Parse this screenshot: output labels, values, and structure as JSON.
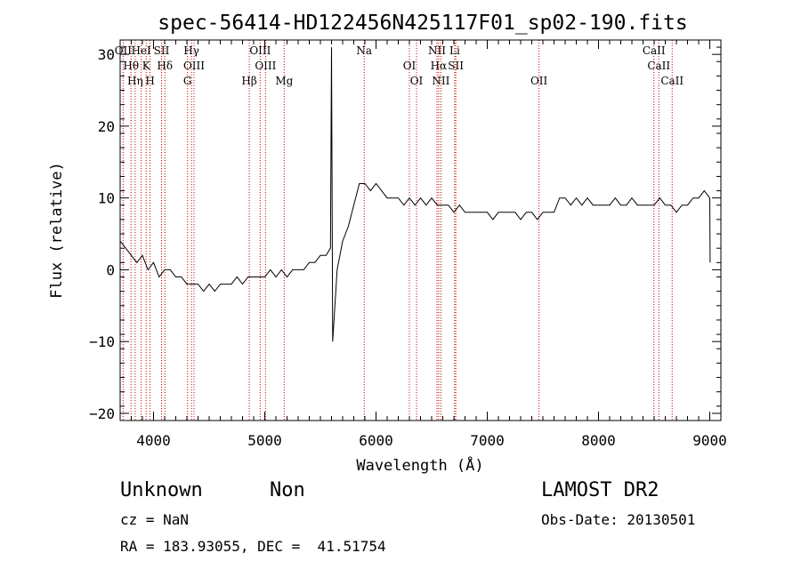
{
  "chart_data": {
    "type": "line",
    "title": "spec-56414-HD122456N425117F01_sp02-190.fits",
    "xlabel": "Wavelength (Å)",
    "ylabel": "Flux (relative)",
    "xlim": [
      3700,
      9100
    ],
    "ylim": [
      -21,
      32
    ],
    "xticks": [
      4000,
      5000,
      6000,
      7000,
      8000,
      9000
    ],
    "yticks": [
      -20,
      -10,
      0,
      10,
      20,
      30
    ],
    "grid": false,
    "legend": "none",
    "line_color": "#000000",
    "marker_color": "#cc0000",
    "series": [
      {
        "x": [
          3700,
          3750,
          3800,
          3850,
          3900,
          3950,
          4000,
          4050,
          4100,
          4150,
          4200,
          4250,
          4300,
          4350,
          4400,
          4450,
          4500,
          4550,
          4600,
          4650,
          4700,
          4750,
          4800,
          4850,
          4900,
          4950,
          5000,
          5050,
          5100,
          5150,
          5200,
          5250,
          5300,
          5350,
          5400,
          5450,
          5500,
          5550,
          5590,
          5600,
          5610,
          5650,
          5700,
          5750,
          5800,
          5850,
          5900,
          5950,
          6000,
          6050,
          6100,
          6150,
          6200,
          6250,
          6300,
          6350,
          6400,
          6450,
          6500,
          6550,
          6600,
          6650,
          6700,
          6750,
          6800,
          6850,
          6900,
          6950,
          7000,
          7050,
          7100,
          7150,
          7200,
          7250,
          7300,
          7350,
          7400,
          7450,
          7500,
          7550,
          7600,
          7650,
          7700,
          7750,
          7800,
          7850,
          7900,
          7950,
          8000,
          8050,
          8100,
          8150,
          8200,
          8250,
          8300,
          8350,
          8400,
          8450,
          8500,
          8550,
          8600,
          8650,
          8700,
          8750,
          8800,
          8850,
          8900,
          8950,
          9000,
          9003
        ],
        "y": [
          4,
          3,
          2,
          1,
          2,
          0,
          1,
          -1,
          0,
          0,
          -1,
          -1,
          -2,
          -2,
          -2,
          -3,
          -2,
          -3,
          -2,
          -2,
          -2,
          -1,
          -2,
          -1,
          -1,
          -1,
          -1,
          0,
          -1,
          0,
          -1,
          0,
          0,
          0,
          1,
          1,
          2,
          2,
          3,
          31,
          -10,
          0,
          4,
          6,
          9,
          12,
          12,
          11,
          12,
          11,
          10,
          10,
          10,
          9,
          10,
          9,
          10,
          9,
          10,
          9,
          9,
          9,
          8,
          9,
          8,
          8,
          8,
          8,
          8,
          7,
          8,
          8,
          8,
          8,
          7,
          8,
          8,
          7,
          8,
          8,
          8,
          10,
          10,
          9,
          10,
          9,
          10,
          9,
          9,
          9,
          9,
          10,
          9,
          9,
          10,
          9,
          9,
          9,
          9,
          10,
          9,
          9,
          8,
          9,
          9,
          10,
          10,
          11,
          10,
          1
        ]
      }
    ],
    "lines": [
      {
        "x": 3727,
        "labels": [
          "OII"
        ]
      },
      {
        "x": 3798,
        "labels": [
          "Hθ"
        ]
      },
      {
        "x": 3835,
        "labels": [
          "Hη"
        ]
      },
      {
        "x": 3889,
        "labels": [
          "HeI"
        ]
      },
      {
        "x": 3934,
        "labels": [
          "K"
        ]
      },
      {
        "x": 3969,
        "labels": [
          "H"
        ]
      },
      {
        "x": 4072,
        "labels": [
          "SII"
        ]
      },
      {
        "x": 4102,
        "labels": [
          "Hδ"
        ]
      },
      {
        "x": 4305,
        "labels": [
          "G"
        ]
      },
      {
        "x": 4341,
        "labels": [
          "Hγ"
        ]
      },
      {
        "x": 4364,
        "labels": [
          "OIII"
        ]
      },
      {
        "x": 4861,
        "labels": [
          "Hβ"
        ]
      },
      {
        "x": 4959,
        "labels": [
          "OIII"
        ]
      },
      {
        "x": 5007,
        "labels": [
          "OIII"
        ]
      },
      {
        "x": 5175,
        "labels": [
          "Mg"
        ]
      },
      {
        "x": 5894,
        "labels": [
          "Na"
        ]
      },
      {
        "x": 6300,
        "labels": [
          "OI"
        ]
      },
      {
        "x": 6364,
        "labels": [
          "OI"
        ]
      },
      {
        "x": 6548,
        "labels": [
          "NII"
        ]
      },
      {
        "x": 6563,
        "labels": [
          "Hα"
        ]
      },
      {
        "x": 6583,
        "labels": [
          "NII"
        ]
      },
      {
        "x": 6707,
        "labels": [
          "Li"
        ]
      },
      {
        "x": 6717,
        "labels": [
          "SII"
        ]
      },
      {
        "x": 7465,
        "labels": [
          "OII"
        ]
      },
      {
        "x": 8498,
        "labels": [
          "CaII"
        ]
      },
      {
        "x": 8542,
        "labels": [
          "CaII"
        ]
      },
      {
        "x": 8662,
        "labels": [
          "CaII"
        ]
      }
    ]
  },
  "info": {
    "object_class": "Unknown",
    "subclass": "Non",
    "survey": "LAMOST DR2",
    "cz": "cz = NaN",
    "obs_date": "Obs-Date: 20130501",
    "coords": "RA = 183.93055, DEC =  41.51754"
  }
}
